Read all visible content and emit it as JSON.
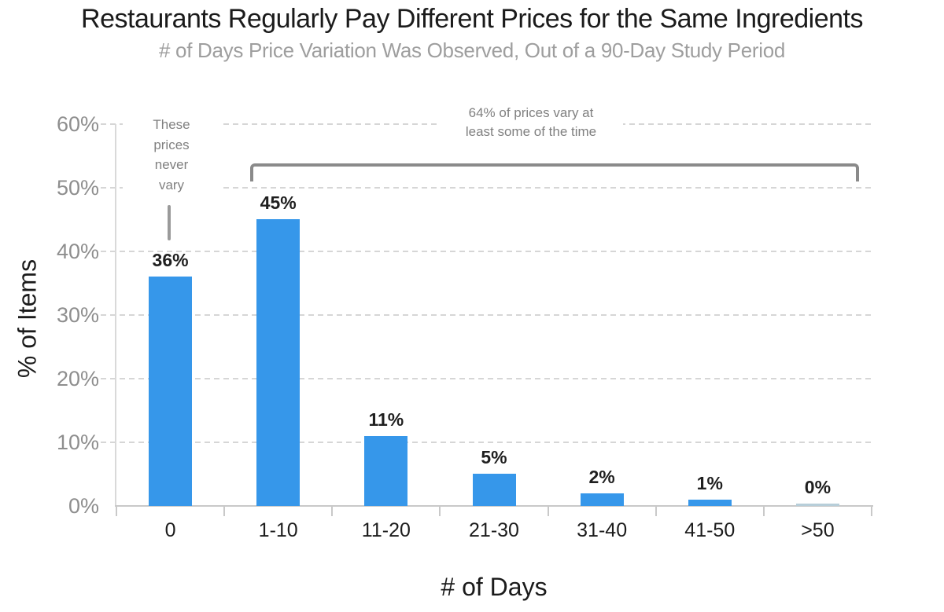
{
  "chart_data": {
    "type": "bar",
    "title": "Restaurants Regularly Pay Different Prices for the Same Ingredients",
    "subtitle": "# of Days Price Variation Was Observed, Out of a 90-Day Study Period",
    "xlabel": "# of Days",
    "ylabel": "% of Items",
    "categories": [
      "0",
      "1-10",
      "11-20",
      "21-30",
      "31-40",
      "41-50",
      ">50"
    ],
    "values": [
      36,
      45,
      11,
      5,
      2,
      1,
      0
    ],
    "bar_labels": [
      "36%",
      "45%",
      "11%",
      "5%",
      "2%",
      "1%",
      "0%"
    ],
    "ylim": [
      0,
      60
    ],
    "ytick_interval": 10,
    "ytick_labels": [
      "0%",
      "10%",
      "20%",
      "30%",
      "40%",
      "50%",
      "60%"
    ],
    "grid": "dashed horizontal, on",
    "legend": "none",
    "annotations": {
      "never_vary": "These\nprices\nnever\nvary",
      "vary_group": "64% of prices vary at\nleast some of the time"
    },
    "colors": {
      "bar": "#3697ea",
      "zero_bar": "#b7ced9",
      "grid": "#d6d6d6",
      "axis": "#c9c9c9",
      "bracket": "#8a8a8a",
      "annotation_text": "#808080",
      "title": "#1b1b1b",
      "subtitle": "#9e9e9e",
      "ytick_text": "#8e8e8e",
      "xtick_text": "#1c1c1c",
      "bar_label_text": "#1f1f1f"
    }
  }
}
